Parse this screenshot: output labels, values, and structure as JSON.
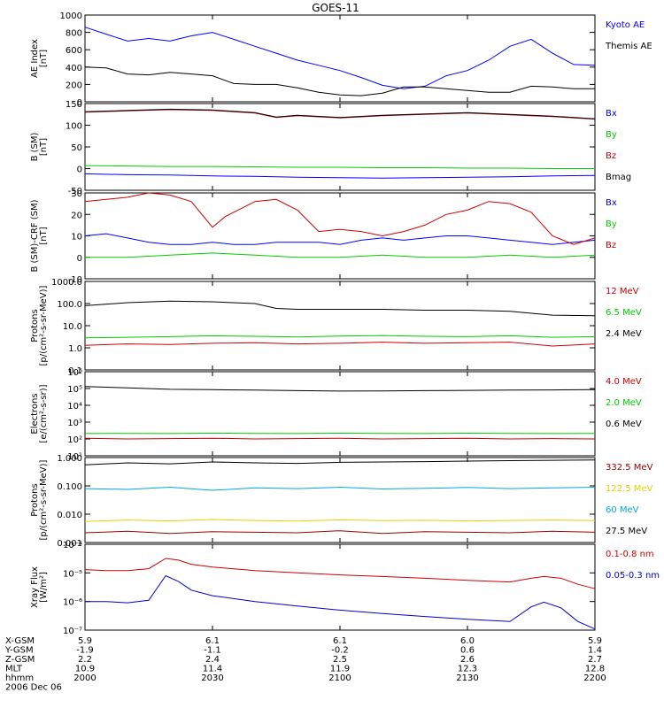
{
  "title": "GOES-11",
  "footer": {
    "rows": [
      {
        "label": "X-GSM",
        "values": [
          "5.9",
          "6.1",
          "6.1",
          "6.0",
          "5.9"
        ]
      },
      {
        "label": "Y-GSM",
        "values": [
          "-1.9",
          "-1.1",
          "-0.2",
          "0.6",
          "1.4"
        ]
      },
      {
        "label": "Z-GSM",
        "values": [
          "2.2",
          "2.4",
          "2.5",
          "2.6",
          "2.7"
        ]
      },
      {
        "label": "MLT",
        "values": [
          "10.9",
          "11.4",
          "11.9",
          "12.3",
          "12.8"
        ]
      },
      {
        "label": "hhmm",
        "values": [
          "2000",
          "2030",
          "2100",
          "2130",
          "2200"
        ]
      }
    ],
    "date": "2006 Dec 06"
  },
  "chart_data": [
    {
      "type": "line",
      "ylabel": [
        "AE Index",
        "[nT]"
      ],
      "ylim": [
        0,
        1000
      ],
      "scale": "linear",
      "yticks": [
        0,
        200,
        400,
        600,
        800,
        1000
      ],
      "yticklabels": [
        "0",
        "200",
        "400",
        "600",
        "800",
        "1000"
      ],
      "xlim": [
        0,
        120
      ],
      "series": [
        {
          "name": "Kyoto AE",
          "color": "#0000ff",
          "x": [
            0,
            5,
            10,
            15,
            20,
            25,
            30,
            35,
            40,
            45,
            50,
            55,
            60,
            65,
            70,
            75,
            80,
            85,
            90,
            95,
            100,
            105,
            110,
            115,
            120
          ],
          "y": [
            860,
            780,
            700,
            730,
            700,
            760,
            800,
            720,
            640,
            560,
            480,
            420,
            360,
            280,
            190,
            150,
            180,
            300,
            360,
            480,
            640,
            720,
            560,
            430,
            420
          ]
        },
        {
          "name": "Themis AE",
          "color": "#000000",
          "x": [
            0,
            5,
            10,
            15,
            20,
            25,
            30,
            35,
            40,
            45,
            50,
            55,
            60,
            65,
            70,
            75,
            80,
            85,
            90,
            95,
            100,
            105,
            110,
            115,
            120
          ],
          "y": [
            400,
            390,
            320,
            310,
            340,
            320,
            300,
            210,
            200,
            200,
            160,
            110,
            80,
            70,
            100,
            170,
            170,
            150,
            130,
            110,
            110,
            180,
            170,
            150,
            150
          ]
        }
      ]
    },
    {
      "type": "line",
      "ylabel": [
        "B (SM)",
        "[nT]"
      ],
      "ylim": [
        -50,
        150
      ],
      "scale": "linear",
      "yticks": [
        -50,
        0,
        50,
        100,
        150
      ],
      "yticklabels": [
        "-50",
        "0",
        "50",
        "100",
        "150"
      ],
      "xlim": [
        0,
        120
      ],
      "series": [
        {
          "name": "Bx",
          "color": "#0000ff",
          "x": [
            0,
            10,
            20,
            30,
            40,
            50,
            60,
            70,
            80,
            90,
            100,
            110,
            120
          ],
          "y": [
            -12,
            -14,
            -15,
            -17,
            -18,
            -20,
            -21,
            -22,
            -21,
            -20,
            -19,
            -17,
            -16
          ]
        },
        {
          "name": "By",
          "color": "#00cc00",
          "x": [
            0,
            10,
            20,
            30,
            40,
            50,
            60,
            70,
            80,
            90,
            100,
            110,
            120
          ],
          "y": [
            7,
            6,
            5,
            5,
            4,
            3,
            3,
            2,
            2,
            1,
            1,
            0,
            0
          ]
        },
        {
          "name": "Bz",
          "color": "#cc0000",
          "x": [
            0,
            10,
            20,
            30,
            40,
            45,
            50,
            60,
            70,
            80,
            90,
            100,
            110,
            120
          ],
          "y": [
            130,
            133,
            136,
            134,
            128,
            118,
            122,
            117,
            122,
            125,
            128,
            124,
            120,
            114
          ]
        },
        {
          "name": "Bmag",
          "color": "#000000",
          "x": [
            0,
            10,
            20,
            30,
            40,
            45,
            50,
            60,
            70,
            80,
            90,
            100,
            110,
            120
          ],
          "y": [
            131,
            134,
            137,
            135,
            129,
            119,
            123,
            118,
            123,
            126,
            129,
            125,
            121,
            115
          ]
        }
      ]
    },
    {
      "type": "line",
      "ylabel": [
        "B (SM)-CRF (SM)",
        "[nT]"
      ],
      "ylim": [
        -10,
        30
      ],
      "scale": "linear",
      "yticks": [
        -10,
        0,
        10,
        20,
        30
      ],
      "yticklabels": [
        "-10",
        "0",
        "10",
        "20",
        "30"
      ],
      "xlim": [
        0,
        120
      ],
      "series": [
        {
          "name": "Bx",
          "color": "#0000ff",
          "x": [
            0,
            5,
            10,
            15,
            20,
            25,
            30,
            35,
            40,
            45,
            50,
            55,
            60,
            65,
            70,
            75,
            80,
            85,
            90,
            95,
            100,
            105,
            110,
            115,
            120
          ],
          "y": [
            10,
            11,
            9,
            7,
            6,
            6,
            7,
            6,
            6,
            7,
            7,
            7,
            6,
            8,
            9,
            8,
            9,
            10,
            10,
            9,
            8,
            7,
            6,
            7,
            8
          ]
        },
        {
          "name": "By",
          "color": "#00cc00",
          "x": [
            0,
            10,
            20,
            30,
            40,
            50,
            60,
            70,
            80,
            90,
            100,
            110,
            120
          ],
          "y": [
            0,
            0,
            1,
            2,
            1,
            0,
            0,
            1,
            0,
            0,
            1,
            0,
            1
          ]
        },
        {
          "name": "Bz",
          "color": "#cc0000",
          "x": [
            0,
            5,
            10,
            15,
            20,
            25,
            30,
            33,
            36,
            40,
            45,
            50,
            55,
            60,
            65,
            70,
            75,
            80,
            85,
            90,
            95,
            100,
            105,
            110,
            115,
            120
          ],
          "y": [
            26,
            27,
            28,
            30,
            29,
            26,
            14,
            19,
            22,
            26,
            27,
            22,
            12,
            13,
            12,
            10,
            12,
            15,
            20,
            22,
            26,
            25,
            21,
            10,
            6,
            9
          ]
        }
      ]
    },
    {
      "type": "line",
      "ylabel": [
        "Protons",
        "[p/(cm²-s-sr-MeV)]"
      ],
      "ylim": [
        0.1,
        1000
      ],
      "scale": "log",
      "yticks": [
        0.1,
        1,
        10,
        100,
        1000
      ],
      "yticklabels": [
        "0.1",
        "1.0",
        "10.0",
        "100.0",
        "1000.0"
      ],
      "xlim": [
        0,
        120
      ],
      "series": [
        {
          "name": "12 MeV",
          "color": "#cc0000",
          "x": [
            0,
            10,
            20,
            30,
            40,
            50,
            60,
            70,
            80,
            90,
            100,
            110,
            120
          ],
          "y": [
            1.3,
            1.5,
            1.4,
            1.6,
            1.7,
            1.5,
            1.6,
            1.8,
            1.6,
            1.7,
            1.8,
            1.2,
            1.5
          ]
        },
        {
          "name": "6.5 MeV",
          "color": "#00cc00",
          "x": [
            0,
            10,
            20,
            30,
            40,
            50,
            60,
            70,
            80,
            90,
            100,
            110,
            120
          ],
          "y": [
            2.8,
            3.0,
            3.2,
            3.5,
            3.3,
            3.1,
            3.4,
            3.6,
            3.3,
            3.2,
            3.5,
            3.0,
            3.2
          ]
        },
        {
          "name": "2.4 MeV",
          "color": "#000000",
          "x": [
            0,
            10,
            20,
            30,
            40,
            45,
            50,
            60,
            70,
            80,
            90,
            100,
            110,
            120
          ],
          "y": [
            80,
            110,
            130,
            120,
            100,
            60,
            55,
            55,
            55,
            50,
            50,
            45,
            30,
            28
          ]
        }
      ]
    },
    {
      "type": "line",
      "ylabel": [
        "Electrons",
        "[e/(cm²-s-sr)]"
      ],
      "ylim": [
        10,
        1000000
      ],
      "scale": "log",
      "yticks": [
        10,
        100,
        1000,
        10000,
        100000,
        1000000
      ],
      "yticklabels": [
        "10¹",
        "10²",
        "10³",
        "10⁴",
        "10⁵",
        "10⁶"
      ],
      "xlim": [
        0,
        120
      ],
      "series": [
        {
          "name": "4.0 MeV",
          "color": "#cc0000",
          "x": [
            0,
            10,
            20,
            30,
            40,
            50,
            60,
            70,
            80,
            90,
            100,
            110,
            120
          ],
          "y": [
            110,
            100,
            105,
            110,
            100,
            105,
            110,
            100,
            105,
            110,
            100,
            105,
            100
          ]
        },
        {
          "name": "2.0 MeV",
          "color": "#00cc00",
          "x": [
            0,
            10,
            20,
            30,
            40,
            50,
            60,
            70,
            80,
            90,
            100,
            110,
            120
          ],
          "y": [
            210,
            215,
            210,
            220,
            215,
            210,
            220,
            215,
            210,
            220,
            215,
            210,
            215
          ]
        },
        {
          "name": "0.6 MeV",
          "color": "#000000",
          "x": [
            0,
            10,
            20,
            30,
            40,
            50,
            60,
            70,
            80,
            90,
            100,
            110,
            120
          ],
          "y": [
            130000,
            110000,
            90000,
            85000,
            80000,
            75000,
            70000,
            72000,
            75000,
            78000,
            80000,
            82000,
            85000
          ]
        }
      ]
    },
    {
      "type": "line",
      "ylabel": [
        "Protons",
        "[p/(cm²-s-sr-MeV)]"
      ],
      "ylim": [
        0.001,
        1
      ],
      "scale": "log",
      "yticks": [
        0.001,
        0.01,
        0.1,
        1
      ],
      "yticklabels": [
        "0.001",
        "0.010",
        "0.100",
        "1.000"
      ],
      "xlim": [
        0,
        120
      ],
      "series": [
        {
          "name": "332.5 MeV",
          "color": "#990000",
          "x": [
            0,
            10,
            20,
            30,
            40,
            50,
            60,
            70,
            80,
            90,
            100,
            110,
            120
          ],
          "y": [
            0.0022,
            0.0025,
            0.0021,
            0.0024,
            0.0023,
            0.0022,
            0.0026,
            0.0021,
            0.0024,
            0.0023,
            0.0022,
            0.0025,
            0.0023
          ]
        },
        {
          "name": "122.5 MeV",
          "color": "#e6d200",
          "x": [
            0,
            10,
            20,
            30,
            40,
            50,
            60,
            70,
            80,
            90,
            100,
            110,
            120
          ],
          "y": [
            0.0055,
            0.0062,
            0.0058,
            0.0065,
            0.006,
            0.0057,
            0.0063,
            0.0059,
            0.0061,
            0.0058,
            0.006,
            0.0062,
            0.0059
          ]
        },
        {
          "name": "60 MeV",
          "color": "#00aadd",
          "x": [
            0,
            10,
            20,
            30,
            40,
            50,
            60,
            70,
            80,
            90,
            100,
            110,
            120
          ],
          "y": [
            0.08,
            0.075,
            0.09,
            0.07,
            0.085,
            0.08,
            0.09,
            0.078,
            0.082,
            0.088,
            0.08,
            0.085,
            0.09
          ]
        },
        {
          "name": "27.5 MeV",
          "color": "#000000",
          "x": [
            0,
            10,
            20,
            30,
            40,
            50,
            60,
            70,
            80,
            90,
            100,
            110,
            120
          ],
          "y": [
            0.55,
            0.65,
            0.6,
            0.7,
            0.65,
            0.62,
            0.68,
            0.7,
            0.72,
            0.75,
            0.78,
            0.8,
            0.82
          ]
        }
      ]
    },
    {
      "type": "line",
      "ylabel": [
        "Xray Flux",
        "[W/m²]"
      ],
      "ylim": [
        1e-07,
        0.0001
      ],
      "scale": "log",
      "yticks": [
        1e-07,
        1e-06,
        1e-05,
        0.0001
      ],
      "yticklabels": [
        "10⁻⁷",
        "10⁻⁶",
        "10⁻⁵",
        "10⁻⁴"
      ],
      "xlim": [
        0,
        120
      ],
      "series": [
        {
          "name": "0.1-0.8 nm",
          "color": "#cc0000",
          "x": [
            0,
            5,
            10,
            15,
            19,
            22,
            25,
            30,
            40,
            50,
            60,
            70,
            80,
            90,
            100,
            105,
            108,
            112,
            116,
            120
          ],
          "y": [
            1.3e-05,
            1.2e-05,
            1.2e-05,
            1.4e-05,
            3.2e-05,
            2.8e-05,
            2e-05,
            1.6e-05,
            1.2e-05,
            1e-05,
            8.5e-06,
            7.5e-06,
            6.5e-06,
            5.5e-06,
            4.8e-06,
            6.5e-06,
            7.5e-06,
            6.5e-06,
            4e-06,
            2.8e-06
          ]
        },
        {
          "name": "0.05-0.3 nm",
          "color": "#0000cc",
          "x": [
            0,
            5,
            10,
            15,
            19,
            22,
            25,
            30,
            40,
            50,
            60,
            70,
            80,
            90,
            100,
            105,
            108,
            112,
            116,
            120
          ],
          "y": [
            1e-06,
            1e-06,
            9e-07,
            1.1e-06,
            8e-06,
            5e-06,
            2.5e-06,
            1.6e-06,
            1e-06,
            7e-07,
            5e-07,
            3.8e-07,
            3e-07,
            2.4e-07,
            2e-07,
            6.5e-07,
            9.5e-07,
            6e-07,
            2e-07,
            1.1e-07
          ]
        }
      ]
    }
  ]
}
